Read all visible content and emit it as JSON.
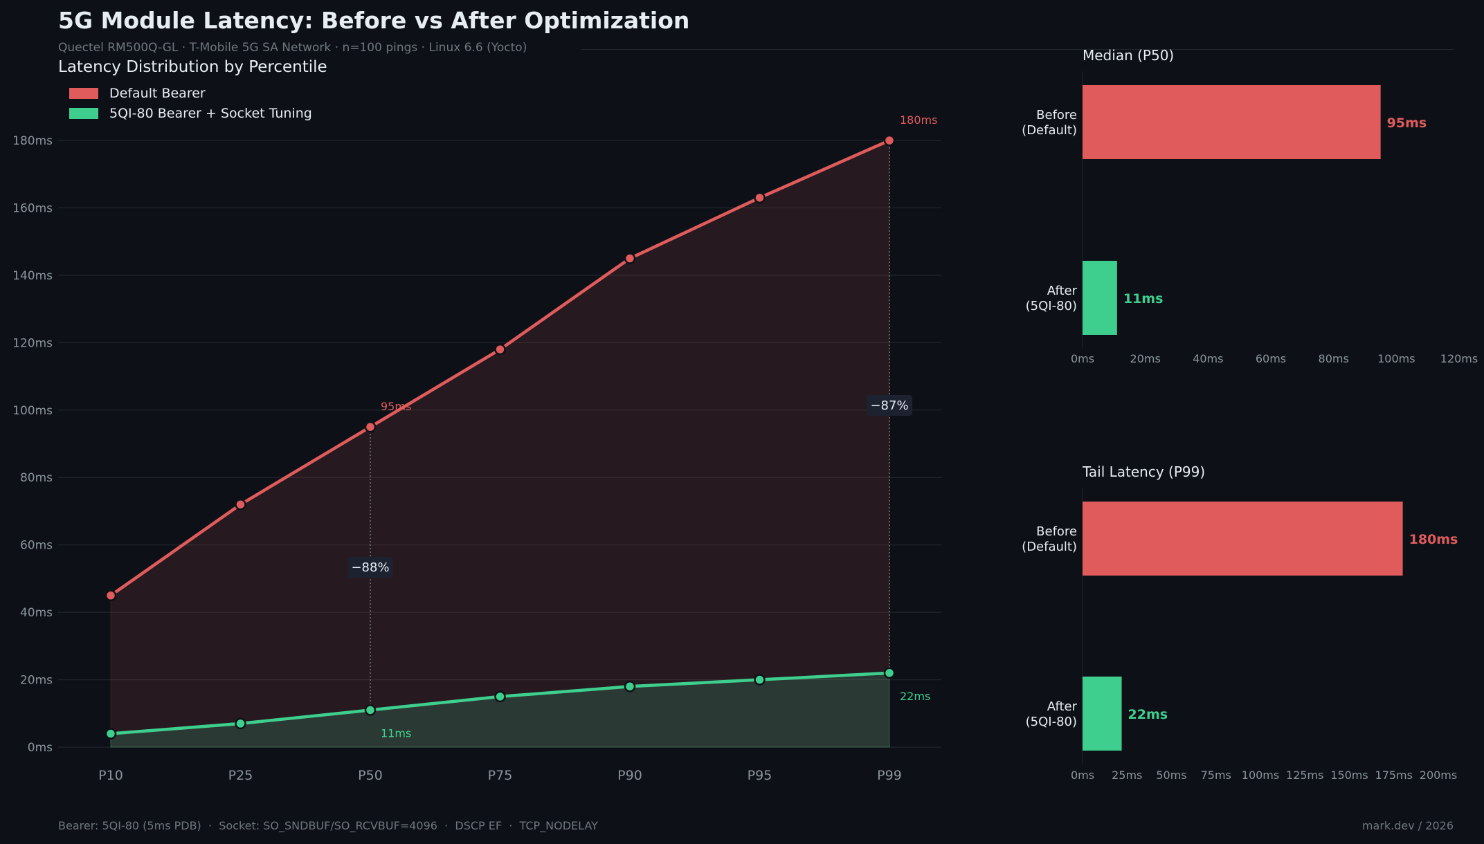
{
  "title": "5G Module Latency: Before vs After Optimization",
  "subtitle": "Quectel RM500Q-GL · T-Mobile 5G SA Network · n=100 pings · Linux 6.6 (Yocto)",
  "footer_left": "Bearer: 5QI-80 (5ms PDB)  ·  Socket: SO_SNDBUF/SO_RCVBUF=4096  ·  DSCP EF  ·  TCP_NODELAY",
  "footer_right": "mark.dev / 2026",
  "colors": {
    "before": "#e05c5c",
    "after": "#3ecf8e",
    "background": "#0d1117",
    "text": "#e6edf3",
    "muted": "#8b949e"
  },
  "chart_data": [
    {
      "type": "line",
      "title": "Latency Distribution by Percentile",
      "categories": [
        "P10",
        "P25",
        "P50",
        "P75",
        "P90",
        "P95",
        "P99"
      ],
      "series": [
        {
          "name": "Default Bearer",
          "values": [
            45,
            72,
            95,
            118,
            145,
            163,
            180
          ]
        },
        {
          "name": "5QI-80 Bearer + Socket Tuning",
          "values": [
            4,
            7,
            11,
            15,
            18,
            20,
            22
          ]
        }
      ],
      "ylim": [
        0,
        180
      ],
      "yticks": [
        0,
        20,
        40,
        60,
        80,
        100,
        120,
        140,
        160,
        180
      ],
      "ytick_labels": [
        "0ms",
        "20ms",
        "40ms",
        "60ms",
        "80ms",
        "100ms",
        "120ms",
        "140ms",
        "160ms",
        "180ms"
      ],
      "grid": true,
      "legend": "top-left",
      "annotations": [
        {
          "category": "P50",
          "before_label": "95ms",
          "after_label": "11ms",
          "delta": "−88%"
        },
        {
          "category": "P99",
          "before_label": "180ms",
          "after_label": "22ms",
          "delta": "−87%"
        }
      ]
    },
    {
      "type": "bar",
      "orientation": "horizontal",
      "title": "Median (P50)",
      "categories": [
        "Before\n(Default)",
        "After\n(5QI-80)"
      ],
      "values": [
        95,
        11
      ],
      "value_labels": [
        "95ms",
        "11ms"
      ],
      "xlim": [
        0,
        120
      ],
      "xticks": [
        0,
        20,
        40,
        60,
        80,
        100,
        120
      ],
      "xtick_labels": [
        "0ms",
        "20ms",
        "40ms",
        "60ms",
        "80ms",
        "100ms",
        "120ms"
      ]
    },
    {
      "type": "bar",
      "orientation": "horizontal",
      "title": "Tail Latency (P99)",
      "categories": [
        "Before\n(Default)",
        "After\n(5QI-80)"
      ],
      "values": [
        180,
        22
      ],
      "value_labels": [
        "180ms",
        "22ms"
      ],
      "xlim": [
        0,
        200
      ],
      "xticks": [
        0,
        25,
        50,
        75,
        100,
        125,
        150,
        175,
        200
      ],
      "xtick_labels": [
        "0ms",
        "25ms",
        "50ms",
        "75ms",
        "100ms",
        "125ms",
        "150ms",
        "175ms",
        "200ms"
      ]
    }
  ]
}
